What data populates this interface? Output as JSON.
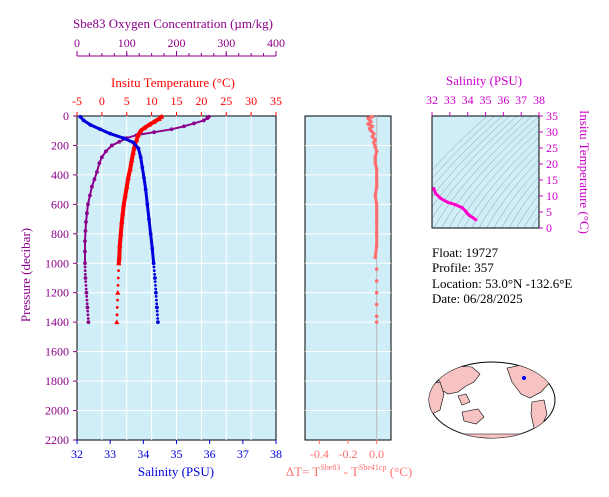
{
  "colors": {
    "oxygen": "#8b008b",
    "temperature": "#ff0000",
    "salinity": "#0000dd",
    "delta": "#ff6f6f",
    "ts_curve": "#ff00cc",
    "ts_axis": "#cc00cc",
    "panel_bg": "#d0eef8",
    "land": "#f6c2c2"
  },
  "main_panel": {
    "oxygen_axis_label": "Sbe83 Oxygen Concentration (µm/kg)",
    "temperature_axis_label": "Insitu Temperature (°C)",
    "pressure_axis_label": "Pressure (decibar)",
    "salinity_axis_label": "Salinity (PSU)",
    "oxygen_ticks": [
      "0",
      "100",
      "200",
      "300",
      "400"
    ],
    "temperature_ticks": [
      "-5",
      "0",
      "5",
      "10",
      "15",
      "20",
      "25",
      "30",
      "35"
    ],
    "pressure_ticks": [
      "0",
      "200",
      "400",
      "600",
      "800",
      "1000",
      "1200",
      "1400",
      "1600",
      "1800",
      "2000",
      "2200"
    ],
    "salinity_ticks": [
      "32",
      "33",
      "34",
      "35",
      "36",
      "37",
      "38"
    ]
  },
  "delta_panel": {
    "x_ticks": [
      "-0.4",
      "-0.2",
      "0.0"
    ],
    "label_prefix": "ΔT= T",
    "label_sup1": "Sbe83",
    "label_mid": " - T",
    "label_sup2": "Sbe41cp",
    "label_suffix": " (°C)"
  },
  "ts_panel": {
    "salinity_label": "Salinity (PSU)",
    "temperature_label": "Insitu Temperature (°C)",
    "salinity_ticks": [
      "32",
      "33",
      "34",
      "35",
      "36",
      "37",
      "38"
    ],
    "temperature_ticks": [
      "0",
      "5",
      "10",
      "15",
      "20",
      "25",
      "30",
      "35"
    ]
  },
  "info": {
    "float": "Float:  19727",
    "profile": "Profile:  357",
    "location": "Location:  53.0°N  -132.6°E",
    "date": "Date:  06/28/2025"
  },
  "chart_data": [
    {
      "type": "line",
      "name": "profile",
      "y_label": "Pressure (decibar)",
      "y_range": [
        0,
        2200
      ],
      "y_inverted": true,
      "series": [
        {
          "name": "Sbe83 Oxygen Concentration (µm/kg)",
          "x_range": [
            0,
            400
          ],
          "points": [
            [
              265,
              5
            ],
            [
              262,
              15
            ],
            [
              255,
              30
            ],
            [
              235,
              50
            ],
            [
              215,
              70
            ],
            [
              190,
              90
            ],
            [
              155,
              110
            ],
            [
              120,
              130
            ],
            [
              100,
              150
            ],
            [
              85,
              175
            ],
            [
              70,
              200
            ],
            [
              58,
              240
            ],
            [
              50,
              280
            ],
            [
              45,
              320
            ],
            [
              40,
              380
            ],
            [
              35,
              430
            ],
            [
              30,
              480
            ],
            [
              26,
              540
            ],
            [
              22,
              600
            ],
            [
              20,
              660
            ],
            [
              18,
              720
            ],
            [
              17,
              780
            ],
            [
              16,
              850
            ],
            [
              16,
              920
            ],
            [
              16,
              1000
            ],
            [
              17,
              1100
            ],
            [
              19,
              1200
            ],
            [
              21,
              1300
            ],
            [
              23,
              1400
            ]
          ]
        },
        {
          "name": "Insitu Temperature (°C)",
          "x_range": [
            -5,
            35
          ],
          "points": [
            [
              12.0,
              5
            ],
            [
              11.5,
              20
            ],
            [
              10.5,
              40
            ],
            [
              9.5,
              60
            ],
            [
              8.6,
              80
            ],
            [
              7.8,
              100
            ],
            [
              7.3,
              130
            ],
            [
              7.0,
              160
            ],
            [
              6.6,
              200
            ],
            [
              6.3,
              250
            ],
            [
              6.0,
              300
            ],
            [
              5.7,
              360
            ],
            [
              5.3,
              420
            ],
            [
              5.0,
              480
            ],
            [
              4.7,
              540
            ],
            [
              4.4,
              600
            ],
            [
              4.2,
              660
            ],
            [
              4.0,
              720
            ],
            [
              3.8,
              800
            ],
            [
              3.6,
              880
            ],
            [
              3.5,
              960
            ],
            [
              3.4,
              1000
            ],
            [
              3.2,
              1200
            ],
            [
              3.0,
              1400
            ]
          ]
        },
        {
          "name": "Salinity (PSU)",
          "x_range": [
            32,
            38
          ],
          "points": [
            [
              32.1,
              5
            ],
            [
              32.2,
              30
            ],
            [
              32.4,
              60
            ],
            [
              32.7,
              90
            ],
            [
              33.0,
              120
            ],
            [
              33.4,
              150
            ],
            [
              33.7,
              180
            ],
            [
              33.85,
              220
            ],
            [
              33.92,
              280
            ],
            [
              33.97,
              350
            ],
            [
              34.02,
              420
            ],
            [
              34.07,
              500
            ],
            [
              34.12,
              600
            ],
            [
              34.17,
              700
            ],
            [
              34.22,
              800
            ],
            [
              34.27,
              900
            ],
            [
              34.31,
              1000
            ],
            [
              34.35,
              1100
            ],
            [
              34.38,
              1200
            ],
            [
              34.41,
              1300
            ],
            [
              34.44,
              1400
            ]
          ]
        }
      ]
    },
    {
      "type": "scatter",
      "name": "delta",
      "x_range": [
        -0.5,
        0.1
      ],
      "y_range": [
        0,
        2200
      ],
      "y_inverted": true,
      "points": [
        [
          -0.03,
          5
        ],
        [
          -0.06,
          15
        ],
        [
          -0.05,
          25
        ],
        [
          -0.04,
          40
        ],
        [
          -0.06,
          55
        ],
        [
          -0.03,
          70
        ],
        [
          -0.05,
          85
        ],
        [
          -0.04,
          100
        ],
        [
          -0.02,
          120
        ],
        [
          -0.03,
          140
        ],
        [
          -0.01,
          160
        ],
        [
          -0.02,
          180
        ],
        [
          -0.01,
          210
        ],
        [
          0.0,
          240
        ],
        [
          -0.01,
          280
        ],
        [
          -0.01,
          320
        ],
        [
          0.0,
          360
        ],
        [
          0.0,
          420
        ],
        [
          0.0,
          480
        ],
        [
          -0.01,
          540
        ],
        [
          0.0,
          600
        ],
        [
          0.0,
          660
        ],
        [
          0.0,
          720
        ],
        [
          0.0,
          800
        ],
        [
          0.0,
          880
        ],
        [
          -0.01,
          960
        ],
        [
          0.0,
          1040
        ],
        [
          0.0,
          1120
        ],
        [
          0.0,
          1200
        ],
        [
          0.0,
          1280
        ],
        [
          0.0,
          1360
        ],
        [
          0.0,
          1400
        ]
      ]
    },
    {
      "type": "line",
      "name": "ts_diagram",
      "x_label": "Salinity (PSU)",
      "y_label": "Insitu Temperature (°C)",
      "x_range": [
        32,
        38
      ],
      "y_range": [
        0,
        35
      ],
      "points": [
        [
          32.1,
          12.3
        ],
        [
          32.2,
          10.8
        ],
        [
          32.5,
          9.2
        ],
        [
          32.9,
          8.0
        ],
        [
          33.3,
          7.3
        ],
        [
          33.7,
          6.3
        ],
        [
          33.9,
          5.2
        ],
        [
          34.0,
          4.4
        ],
        [
          34.1,
          3.9
        ],
        [
          34.3,
          3.2
        ],
        [
          34.45,
          2.6
        ]
      ]
    }
  ]
}
